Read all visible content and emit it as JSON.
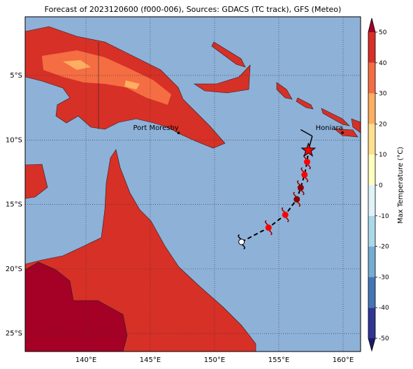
{
  "map": {
    "title": "Forecast of 2023120600 (f000-006), Sources: GDACS (TC track), GFS (Meteo)",
    "xlim": [
      135.27,
      161.36
    ],
    "ylim": [
      -26.4,
      -0.45
    ],
    "xticks": [
      {
        "value": 140,
        "label": "140°E"
      },
      {
        "value": 145,
        "label": "145°E"
      },
      {
        "value": 150,
        "label": "150°E"
      },
      {
        "value": 155,
        "label": "155°E"
      },
      {
        "value": 160,
        "label": "160°E"
      }
    ],
    "yticks": [
      {
        "value": -5,
        "label": "5°S"
      },
      {
        "value": -10,
        "label": "10°S"
      },
      {
        "value": -15,
        "label": "15°S"
      },
      {
        "value": -20,
        "label": "20°S"
      },
      {
        "value": -25,
        "label": "25°S"
      }
    ],
    "grid": true,
    "ocean_color": "#8eb1d8",
    "cities": [
      {
        "name": "Port Moresby",
        "lon": 147.2,
        "lat": -9.45
      },
      {
        "name": "Honiara",
        "lon": 159.95,
        "lat": -9.43
      }
    ],
    "track": {
      "lon": [
        152.1,
        154.2,
        155.5,
        156.4,
        156.7,
        157.0,
        157.2,
        157.3
      ],
      "lat": [
        -17.9,
        -16.8,
        -15.8,
        -14.6,
        -13.7,
        -12.7,
        -11.7,
        -10.8
      ],
      "colors": [
        "#ffffff",
        "#ff0000",
        "#ff0000",
        "#8b0000",
        "#8b0000",
        "#ff0000",
        "#ff0000",
        "#ff0000"
      ]
    },
    "tail": {
      "lon": [
        157.6,
        156.7
      ],
      "lat": [
        -9.7,
        -9.2
      ]
    },
    "colorbar": {
      "label": "Max Temperature (°C)",
      "clim": [
        -50,
        50
      ],
      "ticks": [
        -50,
        -40,
        -30,
        -20,
        -10,
        0,
        10,
        20,
        30,
        40,
        50
      ],
      "colors": [
        "#313695",
        "#4575b4",
        "#74add1",
        "#abd9e9",
        "#e0f3f8",
        "#ffffbf",
        "#fee090",
        "#fdae61",
        "#f46d43",
        "#d73027"
      ],
      "under": "#1c1c6b",
      "over": "#a50026"
    }
  }
}
